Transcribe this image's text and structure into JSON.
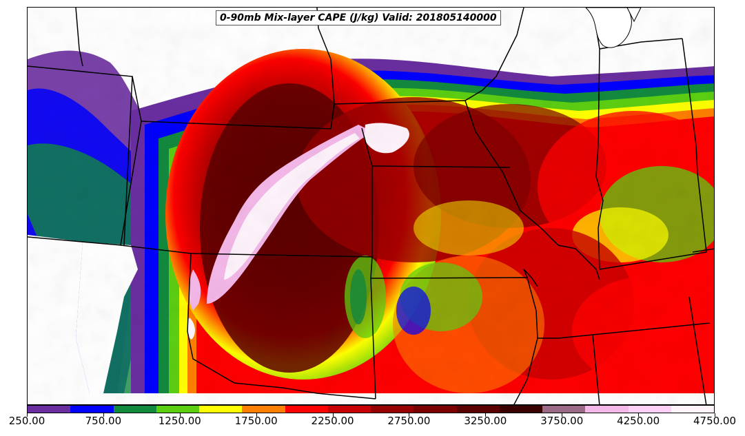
{
  "title": "0-90mb Mix-layer CAPE (J/kg) Valid: 201805140000",
  "colorbar": {
    "colors": [
      "#6a2ea0",
      "#0000ff",
      "#128a3e",
      "#5ccf12",
      "#ffff00",
      "#ff7f00",
      "#ff0000",
      "#c80000",
      "#960000",
      "#7a0000",
      "#5a0000",
      "#3a0000",
      "#9b6a86",
      "#f4b8e8",
      "#ffd0f6",
      "#fff3fc"
    ],
    "labels": [
      "250.00",
      "750.00",
      "1250.00",
      "1750.00",
      "2250.00",
      "2750.00",
      "3250.00",
      "3750.00",
      "4250.00",
      "4750.00"
    ]
  },
  "map": {
    "variable": "0-90mb Mix-layer CAPE",
    "units": "J/kg",
    "valid_time": "201805140000"
  }
}
